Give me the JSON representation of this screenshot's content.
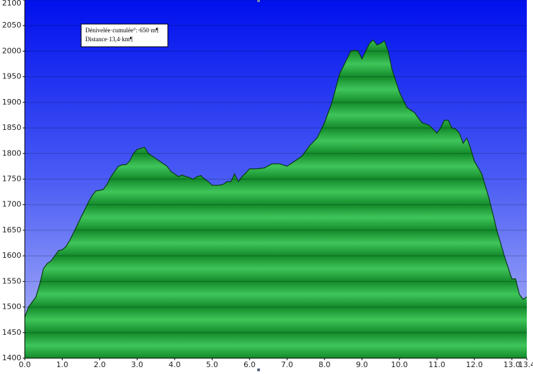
{
  "chart_data": {
    "type": "area",
    "annotations": [
      "Dénivelée·cumulée°:·650·m¶",
      "Distance·13,4·km¶"
    ],
    "x": [
      0.0,
      0.1,
      0.2,
      0.3,
      0.4,
      0.5,
      0.6,
      0.7,
      0.8,
      0.9,
      1.0,
      1.1,
      1.2,
      1.3,
      1.4,
      1.5,
      1.6,
      1.7,
      1.8,
      1.9,
      2.0,
      2.1,
      2.2,
      2.3,
      2.4,
      2.5,
      2.6,
      2.7,
      2.8,
      2.9,
      3.0,
      3.1,
      3.2,
      3.3,
      3.4,
      3.5,
      3.6,
      3.7,
      3.8,
      3.9,
      4.0,
      4.1,
      4.2,
      4.3,
      4.4,
      4.5,
      4.6,
      4.7,
      4.8,
      4.9,
      5.0,
      5.1,
      5.2,
      5.3,
      5.4,
      5.5,
      5.6,
      5.7,
      5.8,
      5.9,
      6.0,
      6.2,
      6.4,
      6.6,
      6.8,
      7.0,
      7.2,
      7.4,
      7.6,
      7.8,
      8.0,
      8.2,
      8.4,
      8.6,
      8.7,
      8.8,
      8.9,
      9.0,
      9.1,
      9.2,
      9.3,
      9.4,
      9.5,
      9.6,
      9.7,
      9.8,
      10.0,
      10.2,
      10.4,
      10.6,
      10.8,
      11.0,
      11.1,
      11.2,
      11.3,
      11.4,
      11.5,
      11.6,
      11.7,
      11.8,
      11.9,
      12.0,
      12.2,
      12.4,
      12.6,
      12.8,
      13.0,
      13.1,
      13.2,
      13.3,
      13.4
    ],
    "values": [
      1480,
      1500,
      1510,
      1520,
      1545,
      1575,
      1585,
      1590,
      1600,
      1610,
      1612,
      1618,
      1630,
      1645,
      1660,
      1675,
      1690,
      1705,
      1718,
      1727,
      1728,
      1730,
      1740,
      1755,
      1765,
      1775,
      1778,
      1778,
      1785,
      1800,
      1808,
      1810,
      1812,
      1800,
      1795,
      1790,
      1785,
      1780,
      1775,
      1765,
      1760,
      1755,
      1758,
      1755,
      1753,
      1750,
      1755,
      1757,
      1750,
      1745,
      1738,
      1738,
      1738,
      1740,
      1745,
      1745,
      1760,
      1745,
      1755,
      1762,
      1770,
      1770,
      1772,
      1780,
      1780,
      1775,
      1785,
      1795,
      1815,
      1830,
      1860,
      1900,
      1955,
      1985,
      2000,
      2002,
      2000,
      1985,
      2000,
      2015,
      2022,
      2012,
      2015,
      2020,
      2000,
      1965,
      1920,
      1890,
      1880,
      1860,
      1855,
      1840,
      1850,
      1865,
      1865,
      1850,
      1848,
      1840,
      1820,
      1830,
      1810,
      1785,
      1760,
      1710,
      1650,
      1600,
      1555,
      1555,
      1525,
      1515,
      1520
    ],
    "color": "#1f9a3a",
    "xlim": [
      0,
      13.4
    ],
    "ylim": [
      1400,
      2100
    ],
    "xticks": [
      {
        "value": 0,
        "label": "0.0"
      },
      {
        "value": 1,
        "label": "1.0"
      },
      {
        "value": 2,
        "label": "2.0"
      },
      {
        "value": 3,
        "label": "3.0"
      },
      {
        "value": 4,
        "label": "4.0"
      },
      {
        "value": 5,
        "label": "5.0"
      },
      {
        "value": 6,
        "label": "6.0"
      },
      {
        "value": 7,
        "label": "7.0"
      },
      {
        "value": 8,
        "label": "8.0"
      },
      {
        "value": 9,
        "label": "9.0"
      },
      {
        "value": 10,
        "label": "10.0"
      },
      {
        "value": 11,
        "label": "11.0"
      },
      {
        "value": 12,
        "label": "12.0"
      },
      {
        "value": 13,
        "label": "13.0"
      },
      13.4
    ],
    "yticks": [
      1400,
      1450,
      1500,
      1550,
      1600,
      1650,
      1700,
      1750,
      1800,
      1850,
      1900,
      1950,
      2000,
      2050,
      2100
    ],
    "grid": true
  }
}
